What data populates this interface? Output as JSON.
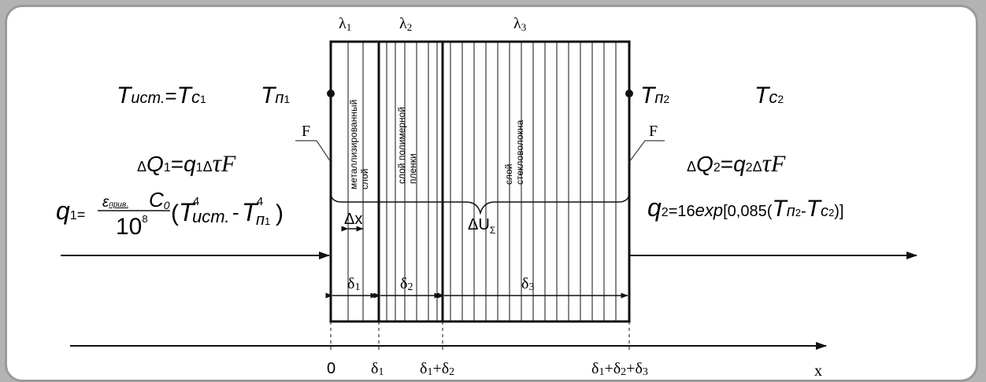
{
  "lambdas": {
    "l1": "λ",
    "l1_sub": "1",
    "l2": "λ",
    "l2_sub": "2",
    "l3": "λ",
    "l3_sub": "3"
  },
  "left_temps": {
    "t_src": "T",
    "t_src_sub": "ист.",
    "eq": "=",
    "t_c1": "T",
    "t_c1_sub": "c",
    "t_c1_idx": "1",
    "t_p1": "T",
    "t_p1_sub": "п",
    "t_p1_idx": "1"
  },
  "right_temps": {
    "t_p2": "T",
    "t_p2_sub": "п",
    "t_p2_idx": "2",
    "t_c2": "T",
    "t_c2_sub": "c",
    "t_c2_idx": "2"
  },
  "area_label_left": "F",
  "area_label_right": "F",
  "dq1": {
    "delta": "Δ",
    "Q": "Q",
    "idx": "1",
    "eq": "=",
    "q": "q",
    "q_idx": "1",
    "delta2": "Δ",
    "tau": "τ",
    "F": "F"
  },
  "dq2": {
    "delta": "Δ",
    "Q": "Q",
    "idx": "2",
    "eq": "=",
    "q": "q",
    "q_idx": "2",
    "delta2": "Δ",
    "tau": "τ",
    "F": "F"
  },
  "q1_formula": {
    "q": "q",
    "idx": "1",
    "eq": "=",
    "eps": "ε",
    "eps_sub": "прив.",
    "C": "C",
    "C_sub": "0",
    "den": "10",
    "den_exp": "8",
    "open": "(",
    "T1": "T",
    "T1_sub": "ист.",
    "exp1": "4",
    "minus": "-",
    "T2": "T",
    "T2_sub": "п",
    "T2_idx": "1",
    "exp2": "4",
    "close": ")"
  },
  "q2_formula": {
    "q": "q",
    "idx": "2",
    "text": "=16",
    "exp": "exp",
    "bracket_open": "[0,085(",
    "T1": "T",
    "T1_sub": "п",
    "T1_idx": "2",
    "minus": "-",
    "T2": "T",
    "T2_sub": "c",
    "T2_idx": "2",
    "bracket_close": ")]"
  },
  "layers": [
    {
      "label": "металлизированный слой",
      "line1": "металлизированный",
      "line2": "слой"
    },
    {
      "label": "слой полимерной пленки",
      "line1": "слой полимерной",
      "line2": "пленки"
    },
    {
      "label": "слой стекловолокна",
      "line1": "слой",
      "line2": "стекловолокна"
    }
  ],
  "dx_label": {
    "delta": "Δ",
    "x": "x"
  },
  "du_label": {
    "delta": "Δ",
    "U": "U",
    "sub": "Σ"
  },
  "thickness": {
    "d1": "δ",
    "d1_idx": "1",
    "d2": "δ",
    "d2_idx": "2",
    "d3": "δ",
    "d3_idx": "3"
  },
  "x_axis": {
    "ticks": [
      {
        "text": "0"
      },
      {
        "text": "δ",
        "idx": "1"
      },
      {
        "p1": "δ",
        "i1": "1",
        "plus1": "+",
        "p2": "δ",
        "i2": "2"
      },
      {
        "p1": "δ",
        "i1": "1",
        "plus1": "+",
        "p2": "δ",
        "i2": "2",
        "plus2": "+",
        "p3": "δ",
        "i3": "3"
      }
    ],
    "label": "x"
  },
  "colors": {
    "line": "#111111",
    "frame": "#9a9a9a",
    "background": "#b3b3b3"
  }
}
